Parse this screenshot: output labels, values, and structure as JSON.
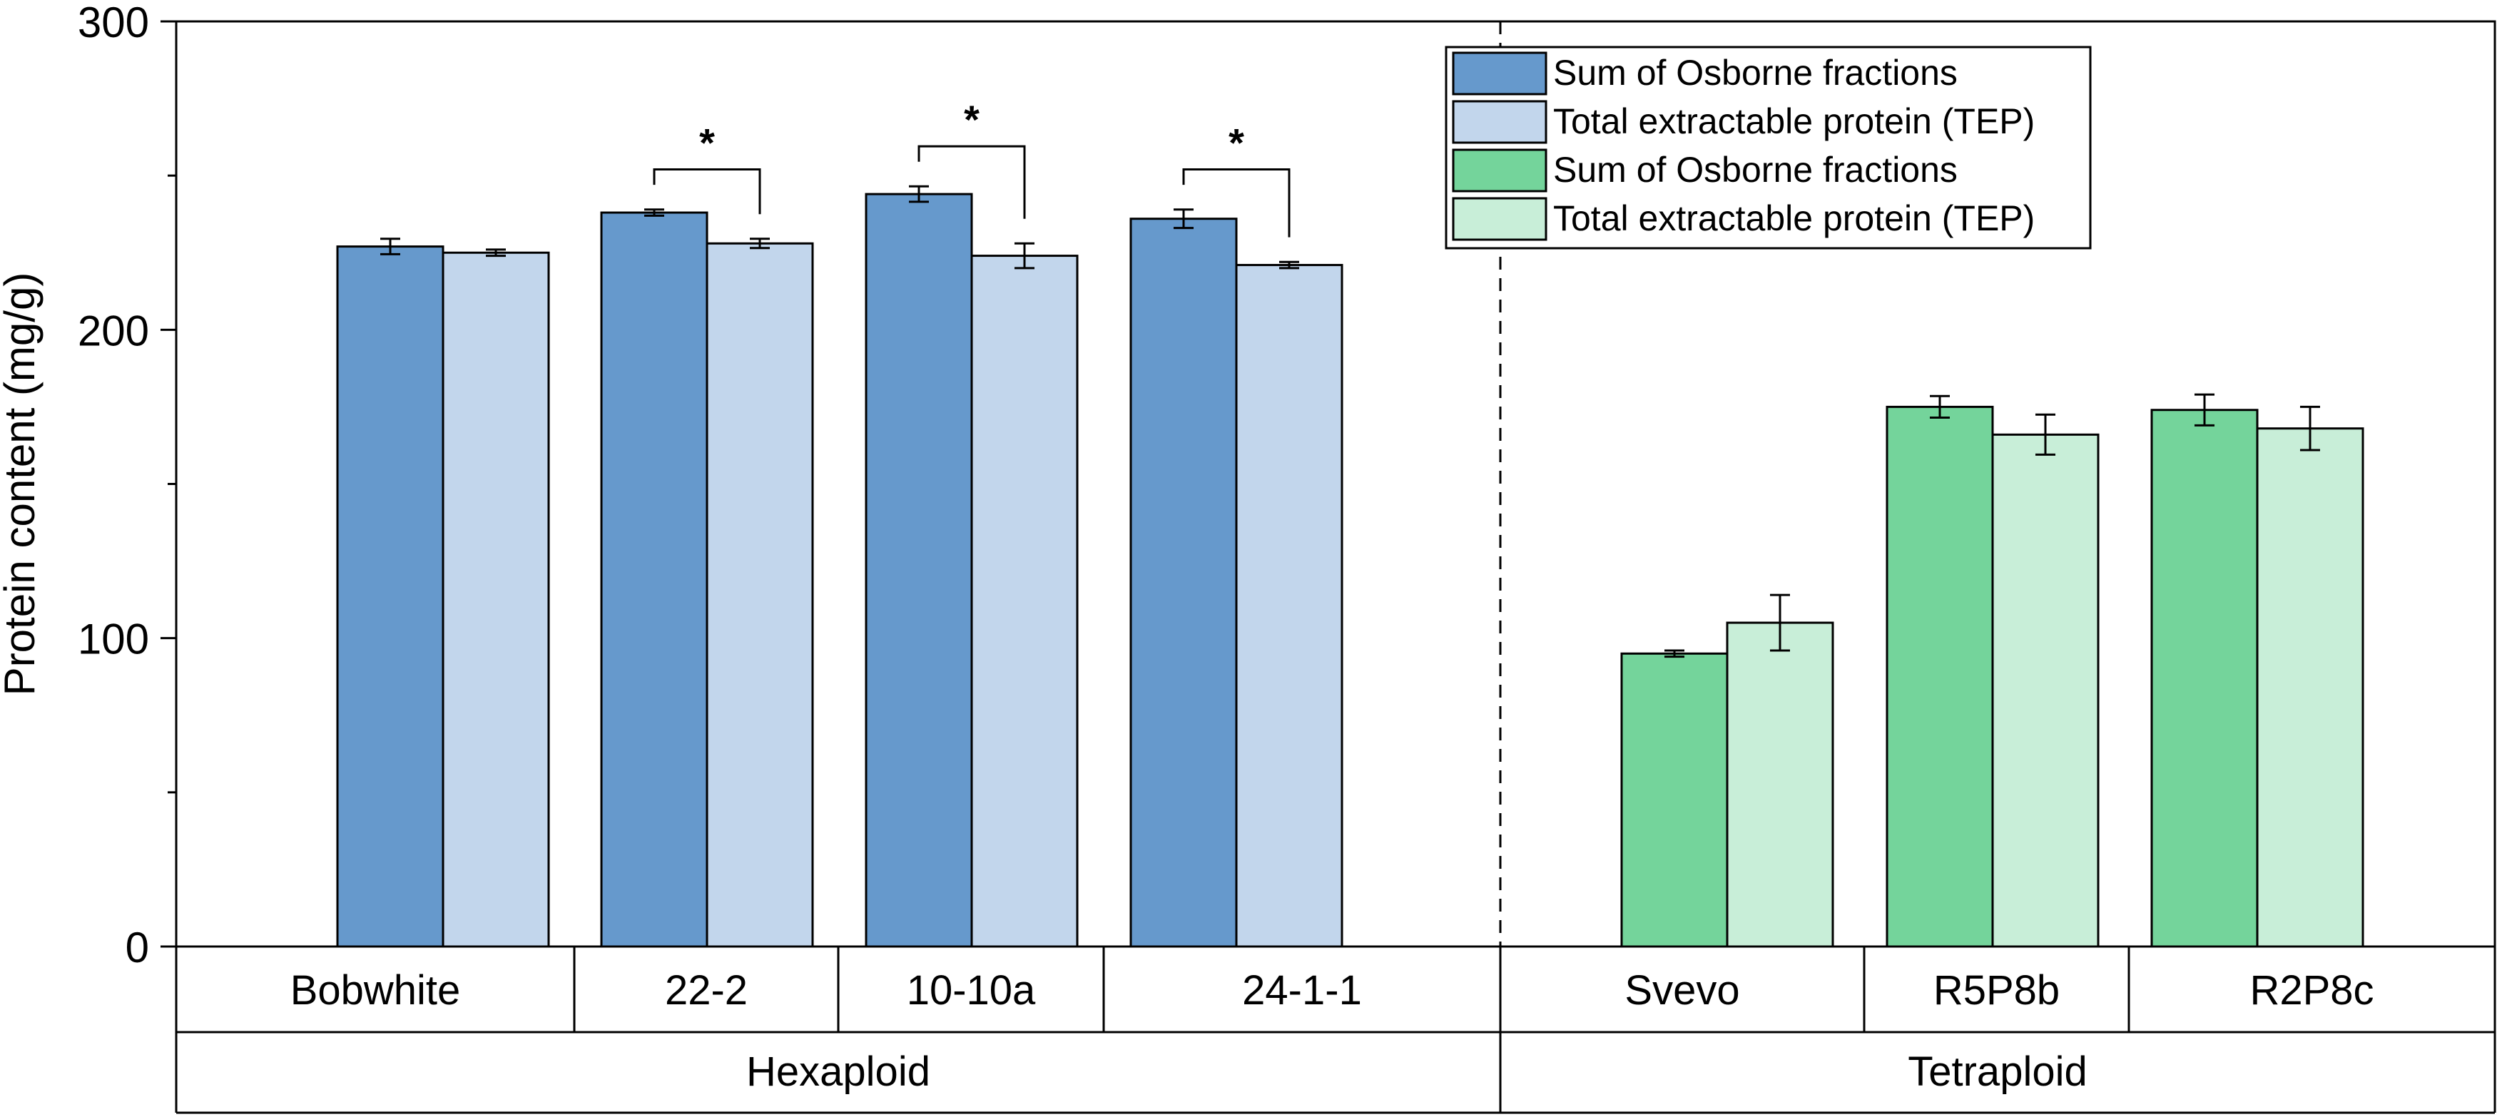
{
  "chart_data": {
    "type": "bar",
    "title": "",
    "ylabel": "Protein content (mg/g)",
    "xlabel": "",
    "ylim": [
      0,
      300
    ],
    "yticks": [
      0,
      100,
      200,
      300
    ],
    "legend_position": "top-right",
    "groups": [
      {
        "name": "Hexaploid",
        "categories": [
          "Bobwhite",
          "22-2",
          "10-10a",
          "24-1-1"
        ]
      },
      {
        "name": "Tetraploid",
        "categories": [
          "Svevo",
          "R5P8b",
          "R2P8c"
        ]
      }
    ],
    "series": [
      {
        "name": "Sum of Osborne fractions",
        "group": "Hexaploid",
        "color": "#6699cc",
        "values": [
          227,
          238,
          244,
          236
        ],
        "errors": [
          2.5,
          1,
          2.5,
          3
        ]
      },
      {
        "name": "Total extractable protein (TEP)",
        "group": "Hexaploid",
        "color": "#c2d6ec",
        "values": [
          225,
          228,
          224,
          221
        ],
        "errors": [
          1,
          1.5,
          4,
          1
        ]
      },
      {
        "name": "Sum of Osborne fractions",
        "group": "Tetraploid",
        "color": "#74d49b",
        "values": [
          95,
          175,
          174
        ],
        "errors": [
          1,
          3.5,
          5
        ]
      },
      {
        "name": "Total extractable protein (TEP)",
        "group": "Tetraploid",
        "color": "#c8eed8",
        "values": [
          105,
          166,
          168
        ],
        "errors": [
          9,
          6.5,
          7
        ]
      }
    ],
    "significance": [
      {
        "category": "22-2",
        "label": "*"
      },
      {
        "category": "10-10a",
        "label": "*"
      },
      {
        "category": "24-1-1",
        "label": "*"
      }
    ]
  }
}
